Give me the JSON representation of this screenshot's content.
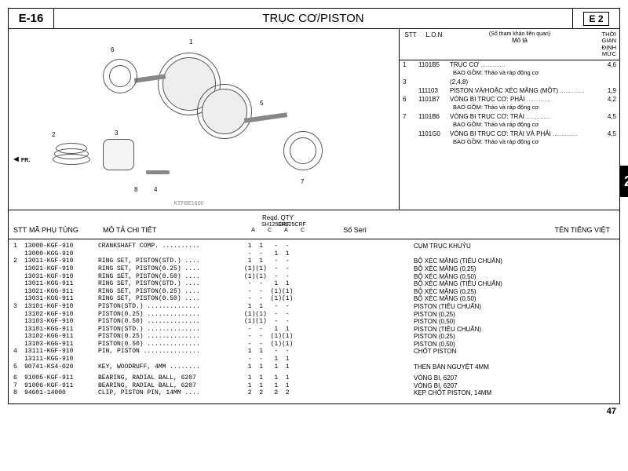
{
  "header": {
    "section_code": "E-16",
    "title": "TRỤC CƠ/PISTON",
    "ref_box": "E  2"
  },
  "side_tab": "2",
  "page_number": "47",
  "diagram": {
    "footer_code": "KTFBE1600",
    "fr_label": "FR.",
    "callouts": [
      "1",
      "2",
      "3",
      "4",
      "5",
      "6",
      "7",
      "8"
    ]
  },
  "top_table": {
    "headers": {
      "stt": "STT",
      "lon": "L.O.N",
      "ref_note": "(Số tham khảo liên quan)",
      "desc": "Mô tả",
      "time": "THỜI GIAN ĐỊNH MỨC"
    },
    "rows": [
      {
        "stt": "1",
        "lon": "1101B5",
        "desc": "TRỤC CƠ",
        "time": "4,6",
        "sub": "BAO GỒM: Tháo và ráp động cơ"
      },
      {
        "stt": "3",
        "lon": "",
        "desc": "(2,4,8)",
        "time": ""
      },
      {
        "stt": "",
        "lon": "111103",
        "desc": "PISTON VÀ/HOẶC XÉC MĂNG (MỘT)",
        "time": "1,9"
      },
      {
        "stt": "6",
        "lon": "1101B7",
        "desc": "VÒNG BI TRỤC CƠ: PHẢI",
        "time": "4,2",
        "sub": "BAO GỒM: Tháo và ráp động cơ"
      },
      {
        "stt": "7",
        "lon": "1101B6",
        "desc": "VÒNG BI TRỤC CƠ: TRÁI",
        "time": "4,5",
        "sub": "BAO GỒM: Tháo và ráp động cơ"
      },
      {
        "stt": "",
        "lon": "1101G0",
        "desc": "VÒNG BI TRỤC CƠ: TRÁI VÀ PHẢI",
        "time": "4,5",
        "sub": "BAO GỒM: Tháo và ráp động cơ"
      }
    ]
  },
  "parts_header": {
    "stt": "STT",
    "code": "MÃ PHỤ TÙNG",
    "desc": "MÔ TẢ CHI TIẾT",
    "reqd": "Reqd. QTY",
    "models": [
      "SH125CRF",
      "SH125CRF"
    ],
    "ac": [
      "A",
      "C",
      "A",
      "C"
    ],
    "seri": "Số Seri",
    "vn": "TÊN TIẾNG VIỆT"
  },
  "parts": [
    {
      "stt": "1",
      "code": "13000-KGF-910",
      "desc": "CRANKSHAFT COMP. ..........",
      "q": " 1  1   -  - ",
      "vn": "CỤM TRỤC KHUỶU"
    },
    {
      "stt": "",
      "code": "13000-KGG-910",
      "desc": "                           ",
      "q": " -  -   1  1 ",
      "vn": ""
    },
    {
      "stt": "2",
      "code": "13011-KGF-910",
      "desc": "RING SET, PISTON(STD.) ....",
      "q": " 1  1   -  - ",
      "vn": "BỘ XÉC MĂNG (TIÊU CHUẨN)"
    },
    {
      "stt": "",
      "code": "13021-KGF-910",
      "desc": "RING SET, PISTON(0.25) ....",
      "q": "(1)(1)  -  - ",
      "vn": "BỘ XÉC MĂNG (0,25)"
    },
    {
      "stt": "",
      "code": "13031-KGF-910",
      "desc": "RING SET, PISTON(0.50) ....",
      "q": "(1)(1)  -  - ",
      "vn": "BỘ XÉC MĂNG (0,50)"
    },
    {
      "stt": "",
      "code": "13011-KGG-911",
      "desc": "RING SET, PISTON(STD.) ....",
      "q": " -  -   1  1 ",
      "vn": "BỘ XÉC MĂNG (TIÊU CHUẨN)"
    },
    {
      "stt": "",
      "code": "13021-KGG-911",
      "desc": "RING SET, PISTON(0.25) ....",
      "q": " -  -  (1)(1)",
      "vn": "BỘ XÉC MĂNG (0,25)"
    },
    {
      "stt": "",
      "code": "13031-KGG-911",
      "desc": "RING SET, PISTON(0.50) ....",
      "q": " -  -  (1)(1)",
      "vn": "BỘ XÉC MĂNG (0,50)"
    },
    {
      "stt": "3",
      "code": "13101-KGF-910",
      "desc": "PISTON(STD.) ..............",
      "q": " 1  1   -  - ",
      "vn": "PISTON (TIÊU CHUẨN)"
    },
    {
      "stt": "",
      "code": "13102-KGF-910",
      "desc": "PISTON(0.25) ..............",
      "q": "(1)(1)  -  - ",
      "vn": "PISTON (0,25)"
    },
    {
      "stt": "",
      "code": "13103-KGF-910",
      "desc": "PISTON(0.50) ..............",
      "q": "(1)(1)  -  - ",
      "vn": "PISTON (0,50)"
    },
    {
      "stt": "",
      "code": "13101-KGG-911",
      "desc": "PISTON(STD.) ..............",
      "q": " -  -   1  1 ",
      "vn": "PISTON (TIÊU CHUẨN)"
    },
    {
      "stt": "",
      "code": "13102-KGG-911",
      "desc": "PISTON(0.25) ..............",
      "q": " -  -  (1)(1)",
      "vn": "PISTON (0,25)"
    },
    {
      "stt": "",
      "code": "13103-KGG-911",
      "desc": "PISTON(0.50) ..............",
      "q": " -  -  (1)(1)",
      "vn": "PISTON (0,50)"
    },
    {
      "stt": "4",
      "code": "13111-KGF-910",
      "desc": "PIN, PISTON ...............",
      "q": " 1  1   -  - ",
      "vn": "CHỐT PISTON"
    },
    {
      "stt": "",
      "code": "13111-KGG-910",
      "desc": "                           ",
      "q": " -  -   1  1 ",
      "vn": ""
    },
    {
      "stt": "5",
      "code": "90741-KS4-020",
      "desc": "KEY, WOODRUFF, 4MM ........",
      "q": " 1  1   1  1 ",
      "vn": "THEN BÁN NGUYỆT 4MM"
    },
    {
      "gap": true
    },
    {
      "stt": "6",
      "code": "91005-KGF-911",
      "desc": "BEARING, RADIAL BALL, 6207 ",
      "q": " 1  1   1  1 ",
      "vn": "VÒNG BI, 6207"
    },
    {
      "stt": "7",
      "code": "91006-KGF-911",
      "desc": "BEARING, RADIAL BALL, 6207 ",
      "q": " 1  1   1  1 ",
      "vn": "VÒNG BI, 6207"
    },
    {
      "stt": "8",
      "code": "94601-14000",
      "desc": "CLIP, PISTON PIN, 14MM ....",
      "q": " 2  2   2  2 ",
      "vn": "KẸP CHỐT PISTON, 14MM"
    }
  ]
}
